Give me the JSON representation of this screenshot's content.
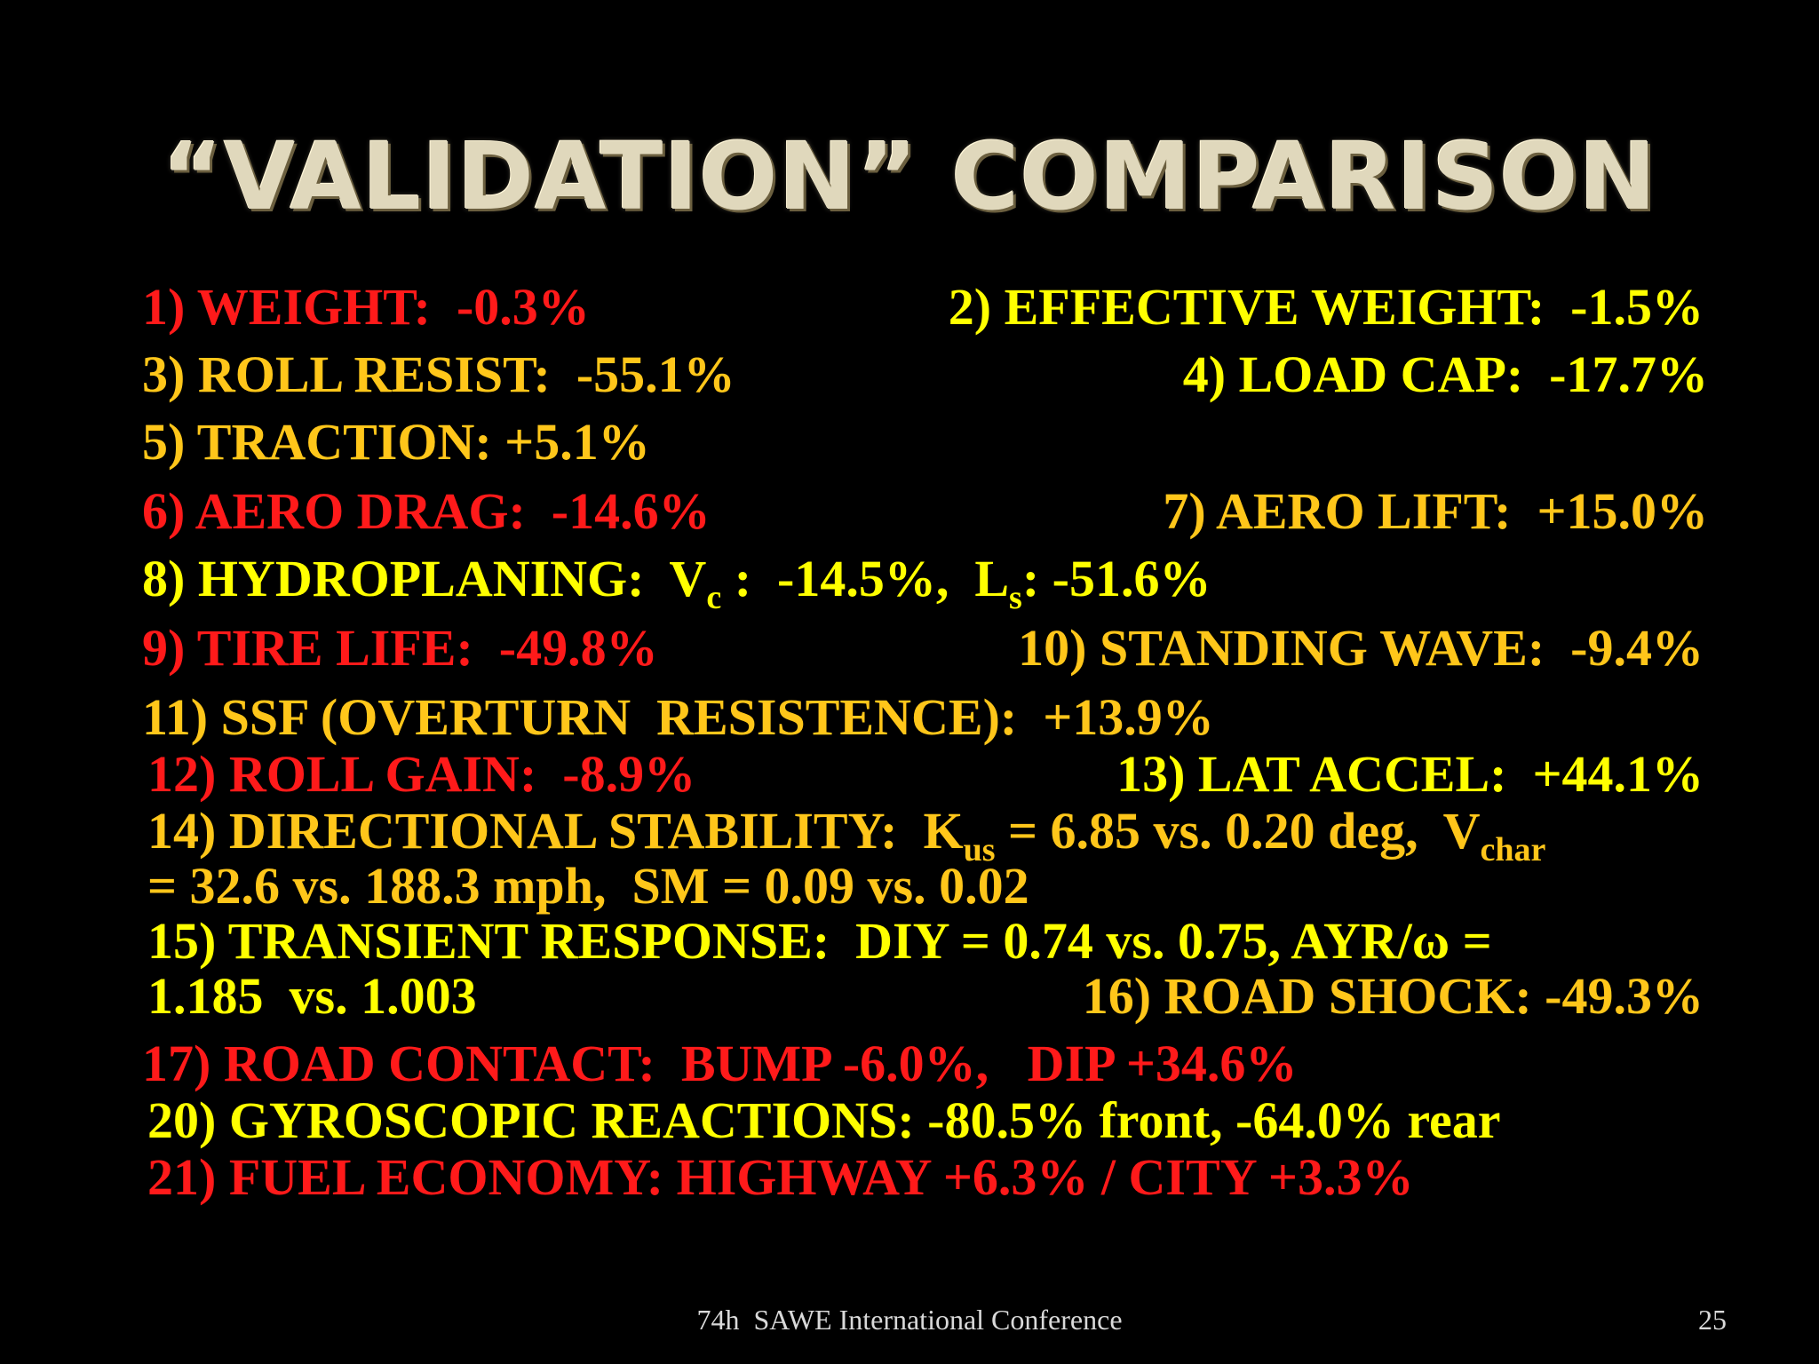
{
  "slide": {
    "title": "“VALIDATION” COMPARISON",
    "items": {
      "i1": "1) WEIGHT:  -0.3%",
      "i2": "2) EFFECTIVE WEIGHT:  -1.5%",
      "i3": "3) ROLL RESIST:  -55.1%",
      "i4": "4) LOAD CAP:  -17.7%",
      "i5": "5) TRACTION: +5.1%",
      "i6": "6) AERO DRAG:  -14.6%",
      "i7": "7) AERO LIFT:  +15.0%",
      "i8": {
        "a": "8) HYDROPLANING:  V",
        "sub1": "c",
        "b": " :  -14.5%,  L",
        "sub2": "s",
        "c": ": -51.6%"
      },
      "i9": "9) TIRE LIFE:  -49.8%",
      "i10": "10) STANDING WAVE:  -9.4%",
      "i11": "11) SSF (OVERTURN  RESISTENCE):  +13.9%",
      "i12": "12) ROLL GAIN:  -8.9%",
      "i13": "13) LAT ACCEL:  +44.1%",
      "i14": {
        "a": "14) DIRECTIONAL STABILITY:  K",
        "sub1": "us",
        "b": " = 6.85 vs. 0.20 deg,  V",
        "sub2": "char",
        "line2": "= 32.6 vs. 188.3 mph,  SM = 0.09 vs. 0.02"
      },
      "i15": {
        "line1": "15) TRANSIENT RESPONSE:  DIY = 0.74 vs. 0.75, AYR/ω =",
        "line2": "1.185  vs. 1.003"
      },
      "i16": "16) ROAD SHOCK: -49.3%",
      "i17": "17) ROAD CONTACT:  BUMP -6.0%,   DIP +34.6%",
      "i20": "20) GYROSCOPIC REACTIONS: -80.5% front, -64.0% rear",
      "i21": "21) FUEL ECONOMY: HIGHWAY +6.3% / CITY +3.3%"
    },
    "footer": {
      "conference": "74h  SAWE International Conference",
      "page_number": "25"
    },
    "colors": {
      "background": "#000000",
      "red": "#ff1a1a",
      "orange": "#ffc61a",
      "yellow": "#ffff00",
      "title": "#e0d8bc"
    }
  }
}
